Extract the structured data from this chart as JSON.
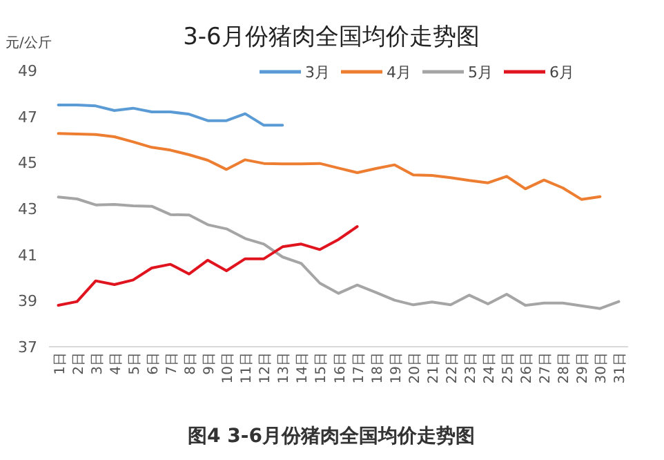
{
  "chart_data": {
    "type": "line",
    "title": "3-6月份猪肉全国均价走势图",
    "ylabel": "元/公斤",
    "annotations": [
      "图4 3-6月份猪肉全国均价走势图"
    ],
    "categories": [
      "1日",
      "2日",
      "3日",
      "4日",
      "5日",
      "6日",
      "7日",
      "8日",
      "9日",
      "10日",
      "11日",
      "12日",
      "13日",
      "14日",
      "15日",
      "16日",
      "17日",
      "18日",
      "19日",
      "20日",
      "21日",
      "22日",
      "23日",
      "24日",
      "25日",
      "26日",
      "27日",
      "28日",
      "29日",
      "30日",
      "31日"
    ],
    "ylim": [
      37,
      49
    ],
    "yticks": [
      37,
      39,
      41,
      43,
      45,
      47,
      49
    ],
    "grid": false,
    "legend": "top",
    "marker": "none",
    "line_style": "solid",
    "series": [
      {
        "name": "3月",
        "color": "#5b9bd5",
        "values": [
          47.5,
          47.5,
          47.46,
          47.26,
          47.36,
          47.2,
          47.2,
          47.1,
          46.82,
          46.82,
          47.12,
          46.62,
          46.62,
          null,
          null,
          null,
          null,
          null,
          null,
          null,
          null,
          null,
          null,
          null,
          null,
          null,
          null,
          null,
          null,
          null,
          null
        ]
      },
      {
        "name": "4月",
        "color": "#ed7d31",
        "values": [
          46.26,
          46.24,
          46.22,
          46.12,
          45.9,
          45.66,
          45.54,
          45.34,
          45.1,
          44.7,
          45.12,
          44.96,
          44.94,
          44.94,
          44.96,
          44.76,
          44.56,
          44.74,
          44.9,
          44.46,
          44.44,
          44.34,
          44.22,
          44.12,
          44.4,
          43.86,
          44.24,
          43.9,
          43.4,
          43.52,
          null
        ]
      },
      {
        "name": "5月",
        "color": "#a5a5a5",
        "values": [
          43.5,
          43.42,
          43.16,
          43.18,
          43.12,
          43.1,
          42.74,
          42.72,
          42.3,
          42.12,
          41.7,
          41.46,
          40.9,
          40.62,
          39.76,
          39.32,
          39.68,
          39.36,
          39.02,
          38.82,
          38.94,
          38.82,
          39.24,
          38.86,
          39.28,
          38.8,
          38.9,
          38.9,
          38.78,
          38.66,
          38.96
        ]
      },
      {
        "name": "6月",
        "color": "#e0141e",
        "values": [
          38.8,
          38.96,
          39.86,
          39.7,
          39.9,
          40.42,
          40.58,
          40.16,
          40.76,
          40.3,
          40.82,
          40.82,
          41.34,
          41.46,
          41.22,
          41.66,
          42.22,
          null,
          null,
          null,
          null,
          null,
          null,
          null,
          null,
          null,
          null,
          null,
          null,
          null,
          null
        ]
      }
    ]
  }
}
